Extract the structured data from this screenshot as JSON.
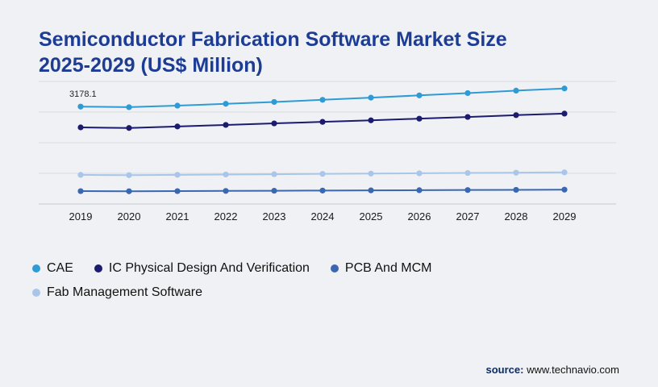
{
  "title": "Semiconductor Fabrication Software Market Size 2025-2029 (US$ Million)",
  "source": {
    "label": "source:",
    "url": "www.technavio.com"
  },
  "chart_data": {
    "type": "line",
    "title": "Semiconductor Fabrication Software Market Size 2025-2029 (US$ Million)",
    "categories": [
      "2019",
      "2020",
      "2021",
      "2022",
      "2023",
      "2024",
      "2025",
      "2026",
      "2027",
      "2028",
      "2029"
    ],
    "xlabel": "",
    "ylabel": "US$ Million",
    "ylim": [
      0,
      4000
    ],
    "gridline_values": [
      0,
      1000,
      2000,
      3000,
      4000
    ],
    "grid": true,
    "legend_position": "bottom-left",
    "series": [
      {
        "name": "CAE",
        "color": "#2E9BD6",
        "values": [
          3178.1,
          3160,
          3210,
          3270,
          3330,
          3400,
          3470,
          3545,
          3620,
          3700,
          3770
        ]
      },
      {
        "name": "IC Physical Design And Verification",
        "color": "#1B1B6F",
        "values": [
          2500,
          2480,
          2530,
          2580,
          2630,
          2680,
          2730,
          2785,
          2840,
          2900,
          2950
        ]
      },
      {
        "name": "PCB And MCM",
        "color": "#3A67B1",
        "values": [
          420,
          415,
          420,
          426,
          432,
          438,
          444,
          450,
          456,
          462,
          468
        ]
      },
      {
        "name": "Fab Management Software",
        "color": "#A9C6EA",
        "values": [
          950,
          940,
          952,
          962,
          972,
          982,
          992,
          1002,
          1012,
          1022,
          1032
        ]
      }
    ],
    "annotations": [
      {
        "text": "3178.1",
        "series": "CAE",
        "category": "2019"
      }
    ]
  }
}
